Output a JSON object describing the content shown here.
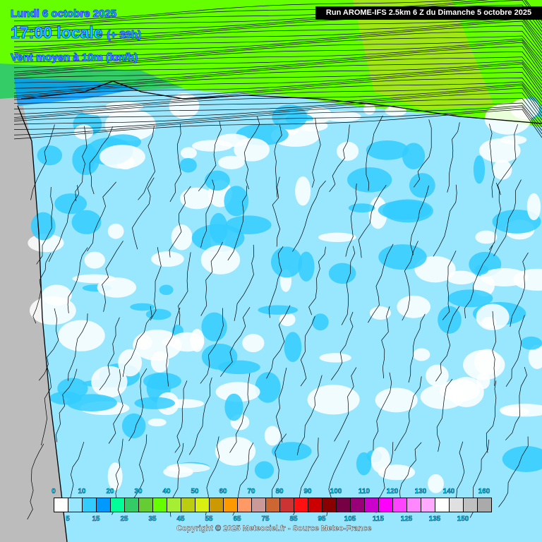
{
  "header": {
    "date": "Lundi 6 octobre 2025",
    "time": "17:00 locale",
    "lead": "(+ 33h)",
    "variable": "Vent moyen à 10m (km/h)",
    "run": "Run AROME-IFS 2.5km 6 Z du Dimanche 5 octobre 2025"
  },
  "legend": {
    "colors": [
      "#ffffff",
      "#99e6ff",
      "#33ccff",
      "#0099ff",
      "#00ff99",
      "#33cc66",
      "#66cc33",
      "#66ff00",
      "#a6ee33",
      "#bbcc11",
      "#d9ee11",
      "#cc9900",
      "#ff9900",
      "#ff9966",
      "#cc9999",
      "#cc6633",
      "#cc3333",
      "#ff1111",
      "#cc0000",
      "#880000",
      "#770044",
      "#990077",
      "#cc00cc",
      "#ff00ff",
      "#ff44ff",
      "#ff88ff",
      "#ffaaff",
      "#ffffff",
      "#e0e0e0",
      "#c0c0c0",
      "#aaaaaa"
    ],
    "top_labels": [
      "0",
      "10",
      "20",
      "30",
      "40",
      "50",
      "60",
      "70",
      "80",
      "90",
      "100",
      "110",
      "120",
      "130",
      "140",
      "160"
    ],
    "bottom_labels": [
      "5",
      "15",
      "25",
      "35",
      "45",
      "55",
      "65",
      "75",
      "85",
      "95",
      "105",
      "115",
      "125",
      "135",
      "150"
    ]
  },
  "copyright": "Copyright © 2025 Meteociel.fr - Source Meteo-France"
}
